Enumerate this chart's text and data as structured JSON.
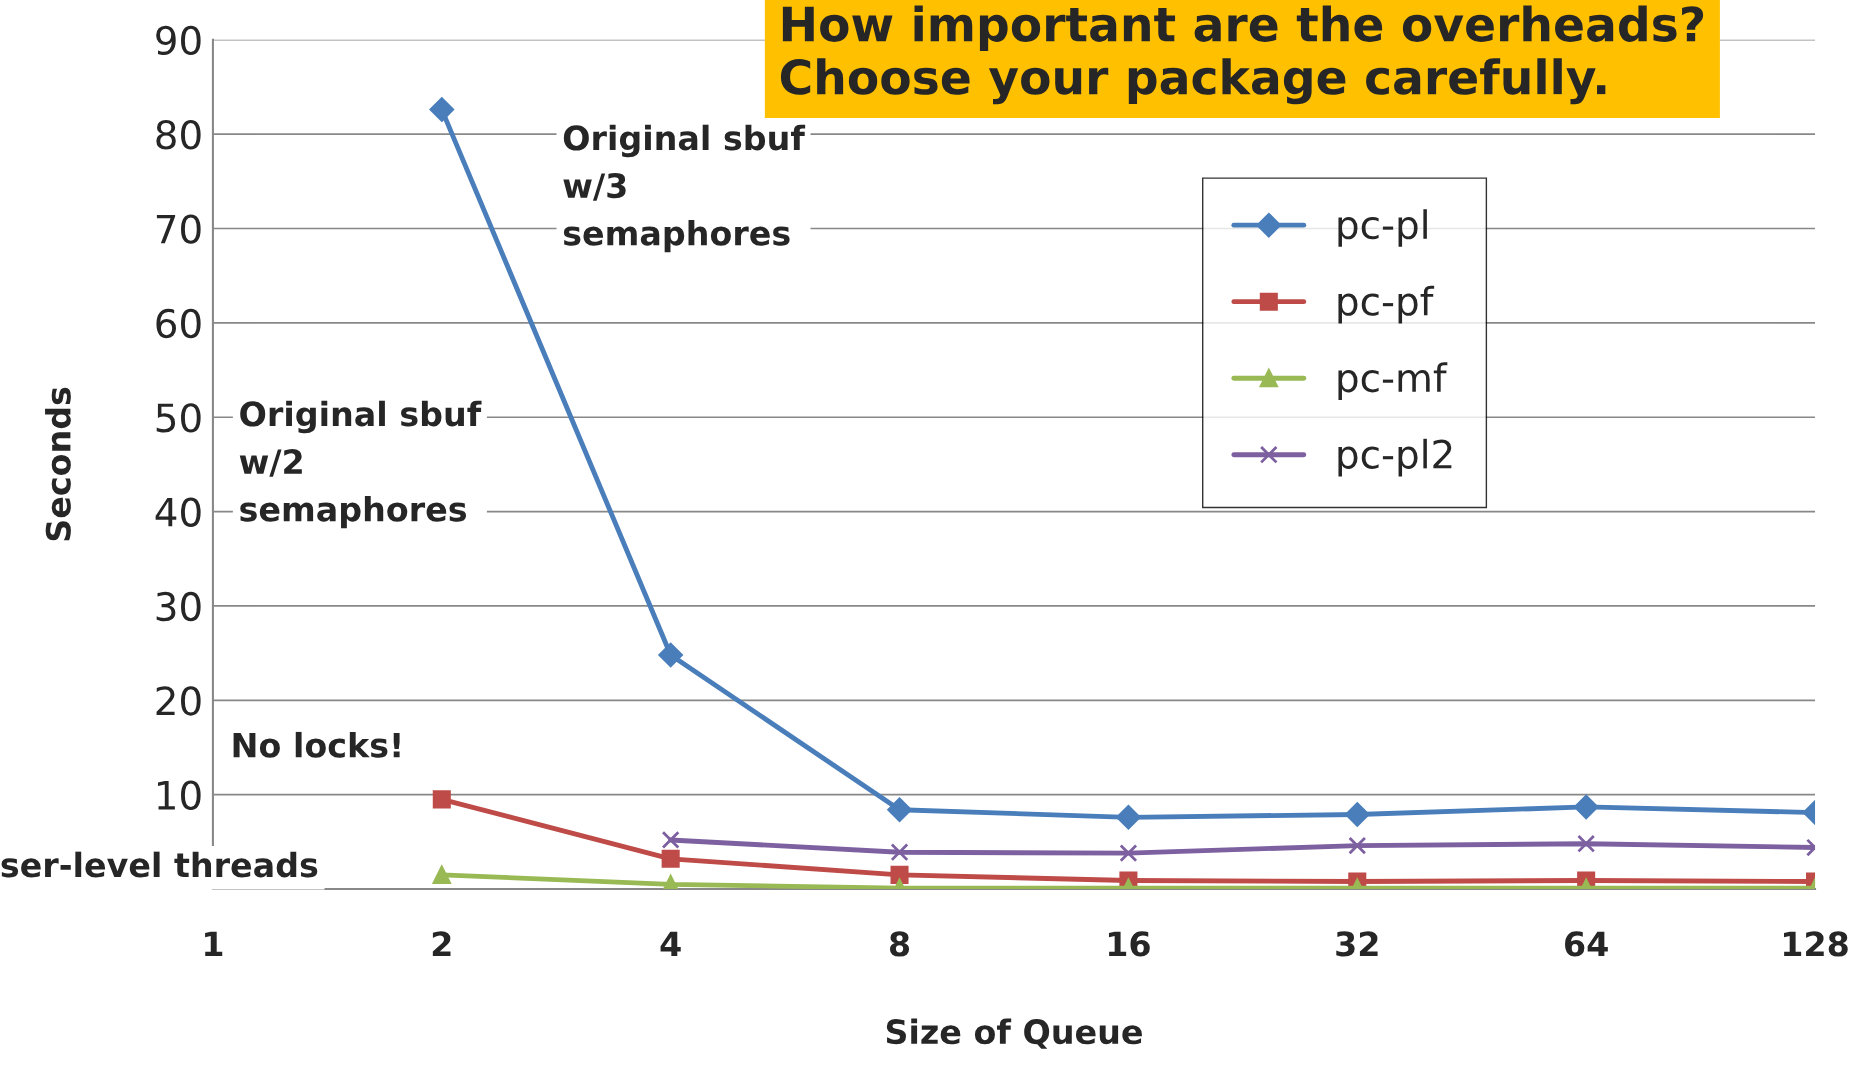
{
  "chart_data": {
    "type": "line",
    "title": "How important are the overheads?\nChoose your package carefully.",
    "xlabel": "Size of Queue",
    "ylabel": "Seconds",
    "categories": [
      "1",
      "2",
      "4",
      "8",
      "16",
      "32",
      "64",
      "128"
    ],
    "series": [
      {
        "name": "pc-pl",
        "color": "#4a7ebb",
        "marker": "diamond",
        "values": [
          null,
          82.6,
          24.8,
          8.4,
          7.6,
          7.9,
          8.7,
          8.1
        ]
      },
      {
        "name": "pc-pf",
        "color": "#be4b48",
        "marker": "square",
        "values": [
          null,
          9.5,
          3.2,
          1.5,
          0.9,
          0.8,
          0.9,
          0.8
        ]
      },
      {
        "name": "pc-mf",
        "color": "#98b954",
        "marker": "triangle",
        "values": [
          null,
          1.5,
          0.5,
          0.1,
          0.1,
          0.1,
          0.1,
          0.1
        ]
      },
      {
        "name": "pc-pl2",
        "color": "#7d60a0",
        "marker": "cross",
        "values": [
          null,
          null,
          5.2,
          3.9,
          3.8,
          4.6,
          4.8,
          4.4
        ]
      }
    ],
    "ylim": [
      0,
      90
    ],
    "yticks": [
      10,
      20,
      30,
      40,
      50,
      60,
      70,
      80,
      90
    ],
    "grid": "y",
    "legend": "top right",
    "annotations": [
      "Original sbuf\nw/3\nsemaphores",
      "Original sbuf\nw/2\nsemaphores",
      "No locks!",
      "ser-level threads"
    ]
  }
}
